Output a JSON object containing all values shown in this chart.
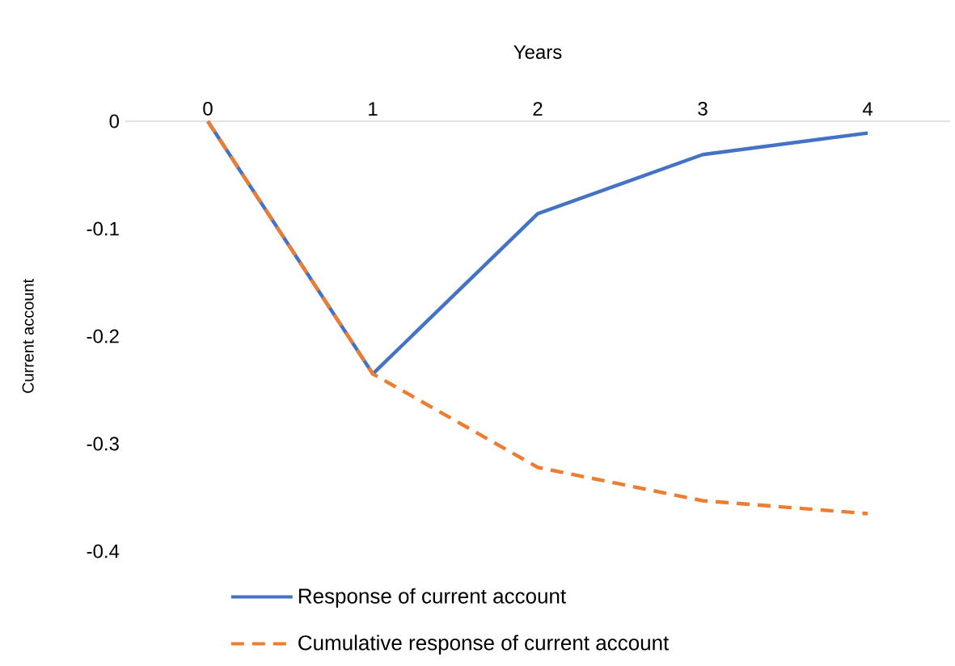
{
  "chart_data": {
    "type": "line",
    "xlabel": "Years",
    "ylabel": "Current account",
    "categories": [
      "0",
      "1",
      "2",
      "3",
      "4"
    ],
    "series": [
      {
        "name": "Response of current account",
        "color": "#4472c4",
        "line_style": "solid",
        "values": [
          0,
          -0.235,
          -0.086,
          -0.031,
          -0.011
        ]
      },
      {
        "name": "Cumulative response of current account",
        "color": "#ed7d31",
        "line_style": "dashed",
        "values": [
          0,
          -0.235,
          -0.322,
          -0.353,
          -0.365
        ]
      }
    ],
    "ylim": [
      -0.4,
      0
    ],
    "yticks": [
      0,
      -0.1,
      -0.2,
      -0.3,
      -0.4
    ],
    "grid": false,
    "legend": "bottom",
    "marker": "none"
  }
}
